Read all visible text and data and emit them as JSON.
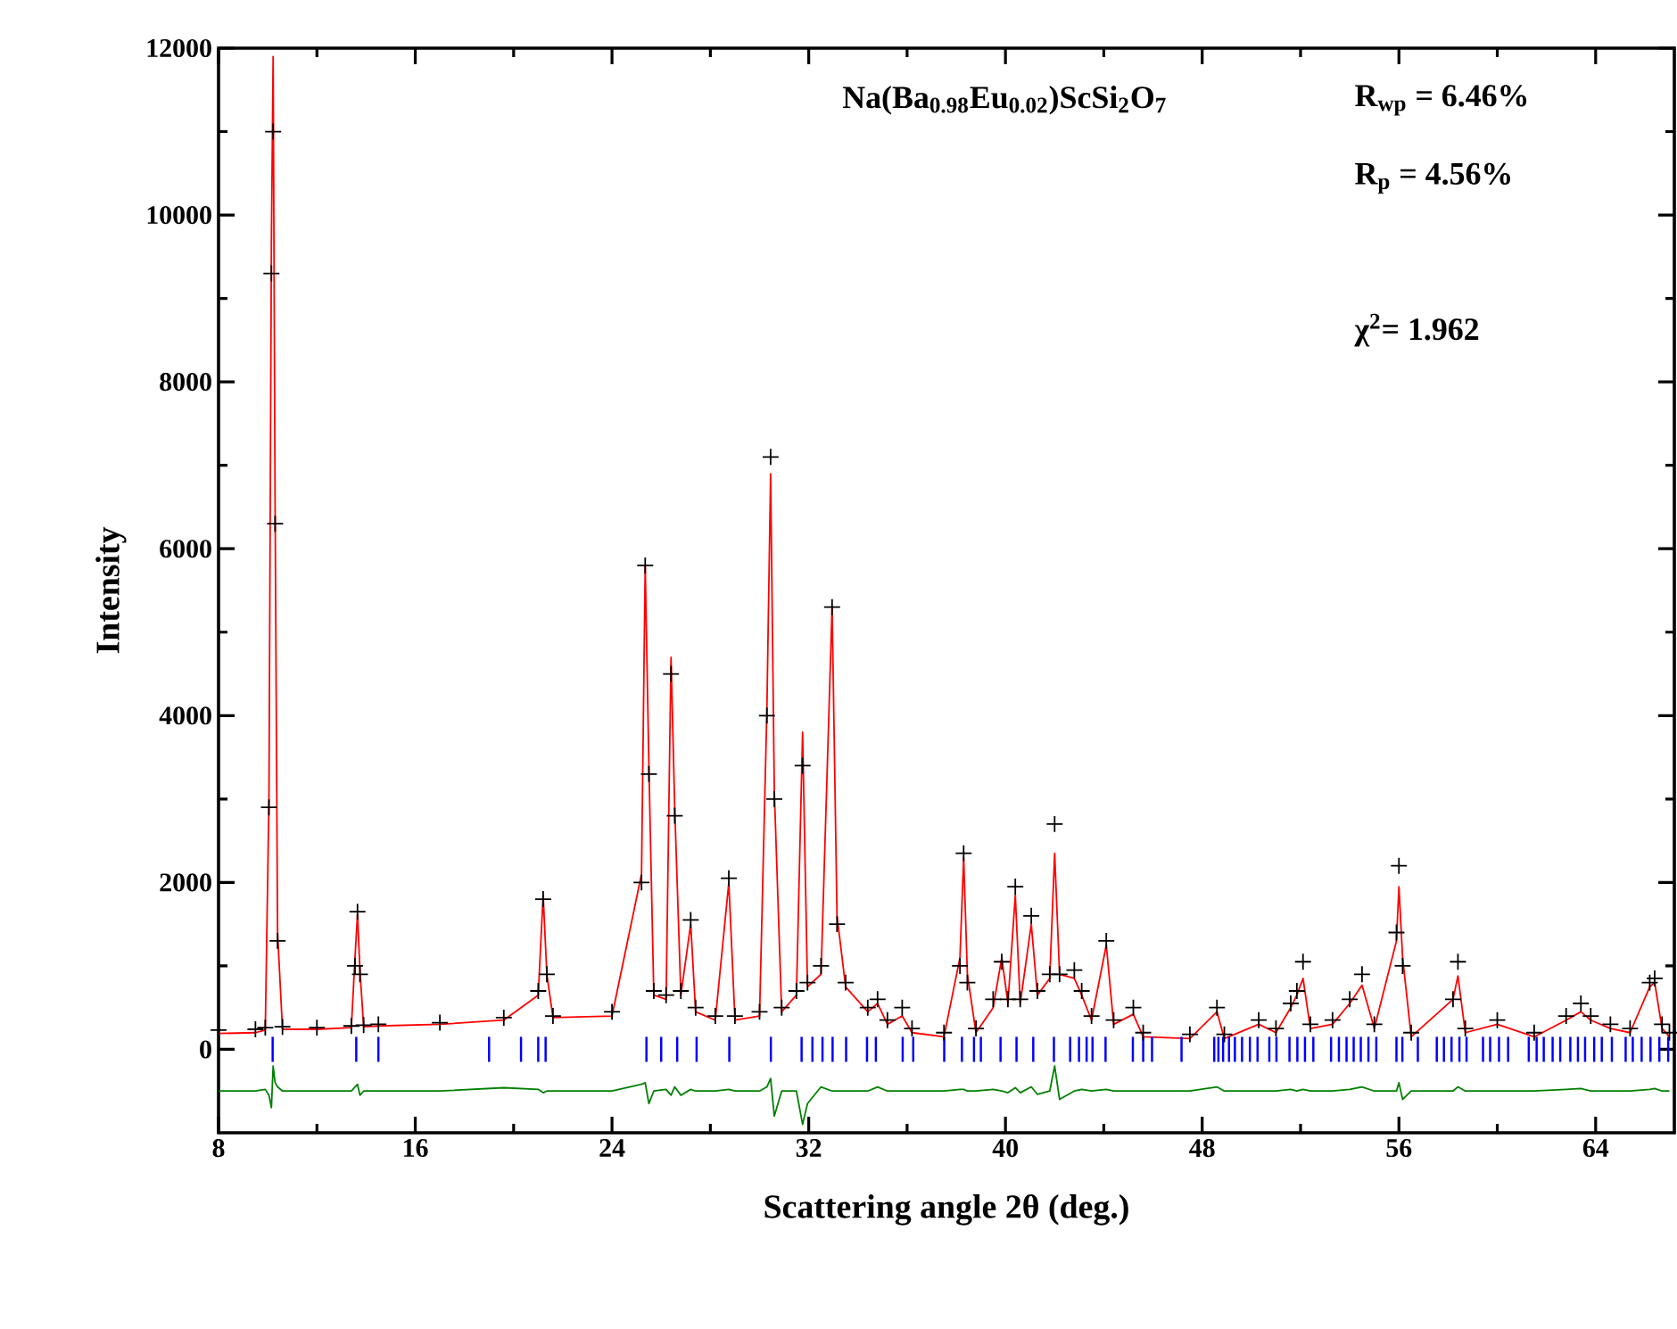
{
  "chart_data": {
    "type": "scatter",
    "xlabel": "Scattering angle 2θ (deg.)",
    "ylabel": "Intensity",
    "annotations": [
      "Na(Ba$_{0.98}$Eu$_{0.02}$)ScSi$_{2}$O$_{7}$",
      "R$_{wp}$ = 6.46%",
      "R$_{p}$ = 4.56%",
      "χ$^{2}$= 1.962"
    ],
    "xlim": [
      8,
      67.2
    ],
    "ylim": [
      -1000,
      12000
    ],
    "xticks": [
      8,
      16,
      24,
      32,
      40,
      48,
      56,
      64
    ],
    "yticks": [
      0,
      2000,
      4000,
      6000,
      8000,
      10000,
      12000
    ],
    "grid": false,
    "x": [
      8.0,
      9.5,
      9.9,
      10.05,
      10.15,
      10.22,
      10.3,
      10.4,
      10.6,
      12.0,
      13.4,
      13.55,
      13.65,
      13.75,
      13.9,
      14.5,
      17.0,
      19.6,
      21.0,
      21.2,
      21.35,
      21.6,
      24.0,
      25.2,
      25.35,
      25.5,
      25.7,
      26.2,
      26.4,
      26.55,
      26.8,
      27.2,
      27.4,
      28.2,
      28.75,
      29.0,
      30.0,
      30.3,
      30.45,
      30.6,
      30.9,
      31.5,
      31.75,
      31.95,
      32.5,
      32.95,
      33.15,
      33.5,
      34.4,
      34.8,
      35.2,
      35.8,
      36.2,
      37.5,
      38.15,
      38.3,
      38.45,
      38.8,
      39.5,
      39.85,
      40.1,
      40.4,
      40.6,
      41.05,
      41.3,
      41.8,
      42.0,
      42.2,
      42.8,
      43.1,
      43.5,
      44.1,
      44.4,
      45.2,
      45.6,
      47.5,
      48.6,
      48.9,
      50.3,
      51.0,
      51.6,
      51.85,
      52.1,
      52.4,
      53.3,
      54.0,
      54.5,
      55.0,
      55.9,
      56.0,
      56.15,
      56.5,
      58.2,
      58.4,
      58.7,
      60.0,
      61.5,
      62.8,
      63.4,
      63.8,
      64.6,
      65.4,
      66.2,
      66.4,
      66.7,
      67.0
    ],
    "series": [
      {
        "marker": "cross",
        "color": "#000000",
        "values": [
          230,
          240,
          260,
          2900,
          9300,
          11000,
          6300,
          1300,
          270,
          260,
          280,
          1000,
          1650,
          900,
          290,
          300,
          320,
          380,
          700,
          1800,
          900,
          400,
          450,
          2000,
          5800,
          3300,
          700,
          650,
          4500,
          2800,
          700,
          1550,
          500,
          400,
          2050,
          400,
          450,
          4000,
          7100,
          3000,
          500,
          700,
          3400,
          800,
          1000,
          5300,
          1500,
          800,
          500,
          600,
          350,
          500,
          250,
          200,
          1000,
          2350,
          800,
          250,
          600,
          1050,
          600,
          1950,
          600,
          1600,
          700,
          900,
          2700,
          900,
          950,
          700,
          400,
          1300,
          350,
          500,
          200,
          180,
          500,
          180,
          350,
          250,
          550,
          700,
          1050,
          300,
          350,
          600,
          900,
          300,
          1400,
          2200,
          1000,
          200,
          600,
          1050,
          250,
          350,
          200,
          400,
          550,
          400,
          300,
          250,
          800,
          850,
          300,
          200
        ]
      },
      {
        "type": "line",
        "marker": "none",
        "line_style": "solid",
        "color": "#ff0000",
        "values": [
          190,
          200,
          230,
          3000,
          9700,
          11900,
          6500,
          1400,
          240,
          240,
          260,
          1100,
          1620,
          950,
          270,
          280,
          300,
          350,
          650,
          1850,
          900,
          380,
          400,
          2100,
          5800,
          3400,
          650,
          600,
          4700,
          2900,
          650,
          1500,
          450,
          350,
          2000,
          350,
          400,
          4100,
          6900,
          3100,
          450,
          650,
          3800,
          750,
          900,
          5300,
          1600,
          750,
          450,
          550,
          300,
          400,
          200,
          150,
          1100,
          2300,
          900,
          200,
          500,
          1100,
          550,
          1850,
          550,
          1500,
          650,
          850,
          2350,
          900,
          850,
          650,
          350,
          1250,
          300,
          420,
          150,
          130,
          450,
          130,
          300,
          200,
          500,
          650,
          850,
          250,
          300,
          550,
          770,
          250,
          1300,
          1950,
          1100,
          150,
          600,
          880,
          200,
          300,
          150,
          350,
          450,
          350,
          250,
          200,
          750,
          800,
          250,
          150
        ]
      },
      {
        "type": "bar",
        "color": "#0000ff",
        "x": [
          10.2,
          13.6,
          14.5,
          19.0,
          20.3,
          21.0,
          21.3,
          25.4,
          26.0,
          26.65,
          27.44,
          28.77,
          30.46,
          31.71,
          32.15,
          32.56,
          32.97,
          33.52,
          34.37,
          34.73,
          35.82,
          36.25,
          37.51,
          38.23,
          38.72,
          39.0,
          39.8,
          40.45,
          41.13,
          41.97,
          42.63,
          42.99,
          43.3,
          43.54,
          44.07,
          45.18,
          45.6,
          45.96,
          47.16,
          48.49,
          48.66,
          48.85,
          49.09,
          49.33,
          49.62,
          49.94,
          50.25,
          50.73,
          51.02,
          51.55,
          51.87,
          52.18,
          52.52,
          53.24,
          53.56,
          53.87,
          54.16,
          54.45,
          54.76,
          55.08,
          55.9,
          56.14,
          56.77,
          57.54,
          57.83,
          58.14,
          58.46,
          58.75,
          59.42,
          59.71,
          60.07,
          60.44,
          61.28,
          61.6,
          61.89,
          62.25,
          62.56,
          62.97,
          63.28,
          63.57,
          63.94,
          64.25,
          64.66,
          65.22,
          65.51,
          65.87,
          66.23,
          66.59,
          66.95
        ],
        "values": [
          300,
          300,
          300,
          300,
          300,
          300,
          300,
          300,
          300,
          300,
          300,
          300,
          300,
          300,
          300,
          300,
          300,
          300,
          300,
          300,
          300,
          300,
          300,
          300,
          300,
          300,
          300,
          300,
          300,
          300,
          300,
          300,
          300,
          300,
          300,
          300,
          300,
          300,
          300,
          300,
          300,
          300,
          300,
          300,
          300,
          300,
          300,
          300,
          300,
          300,
          300,
          300,
          300,
          300,
          300,
          300,
          300,
          300,
          300,
          300,
          300,
          300,
          300,
          300,
          300,
          300,
          300,
          300,
          300,
          300,
          300,
          300,
          300,
          300,
          300,
          300,
          300,
          300,
          300,
          300,
          300,
          300,
          300,
          300,
          300,
          300,
          300,
          300,
          300
        ],
        "base": [
          -150,
          -150,
          -150,
          -150,
          -150,
          -150,
          -150,
          -150,
          -150,
          -150,
          -150,
          -150,
          -150,
          -150,
          -150,
          -150,
          -150,
          -150,
          -150,
          -150,
          -150,
          -150,
          -150,
          -150,
          -150,
          -150,
          -150,
          -150,
          -150,
          -150,
          -150,
          -150,
          -150,
          -150,
          -150,
          -150,
          -150,
          -150,
          -150,
          -150,
          -150,
          -150,
          -150,
          -150,
          -150,
          -150,
          -150,
          -150,
          -150,
          -150,
          -150,
          -150,
          -150,
          -150,
          -150,
          -150,
          -150,
          -150,
          -150,
          -150,
          -150,
          -150,
          -150,
          -150,
          -150,
          -150,
          -150,
          -150,
          -150,
          -150,
          -150,
          -150,
          -150,
          -150,
          -150,
          -150,
          -150,
          -150,
          -150,
          -150,
          -150,
          -150,
          -150,
          -150,
          -150,
          -150,
          -150,
          -150,
          -150
        ]
      },
      {
        "type": "line",
        "marker": "none",
        "line_style": "solid",
        "color": "#008000",
        "values": [
          -500,
          -500,
          -480,
          -550,
          -700,
          -200,
          -400,
          -450,
          -500,
          -500,
          -500,
          -450,
          -420,
          -550,
          -500,
          -500,
          -500,
          -460,
          -480,
          -520,
          -500,
          -500,
          -500,
          -420,
          -400,
          -650,
          -500,
          -480,
          -550,
          -450,
          -550,
          -480,
          -500,
          -500,
          -480,
          -500,
          -500,
          -450,
          -350,
          -800,
          -500,
          -500,
          -900,
          -650,
          -450,
          -500,
          -500,
          -500,
          -500,
          -450,
          -500,
          -500,
          -500,
          -500,
          -480,
          -480,
          -500,
          -500,
          -480,
          -500,
          -520,
          -460,
          -520,
          -450,
          -540,
          -500,
          -200,
          -600,
          -500,
          -480,
          -500,
          -480,
          -500,
          -500,
          -500,
          -500,
          -450,
          -500,
          -500,
          -500,
          -480,
          -500,
          -480,
          -500,
          -500,
          -480,
          -450,
          -500,
          -500,
          -400,
          -600,
          -500,
          -500,
          -450,
          -500,
          -500,
          -500,
          -480,
          -470,
          -500,
          -500,
          -500,
          -480,
          -470,
          -500,
          -500
        ]
      }
    ]
  }
}
